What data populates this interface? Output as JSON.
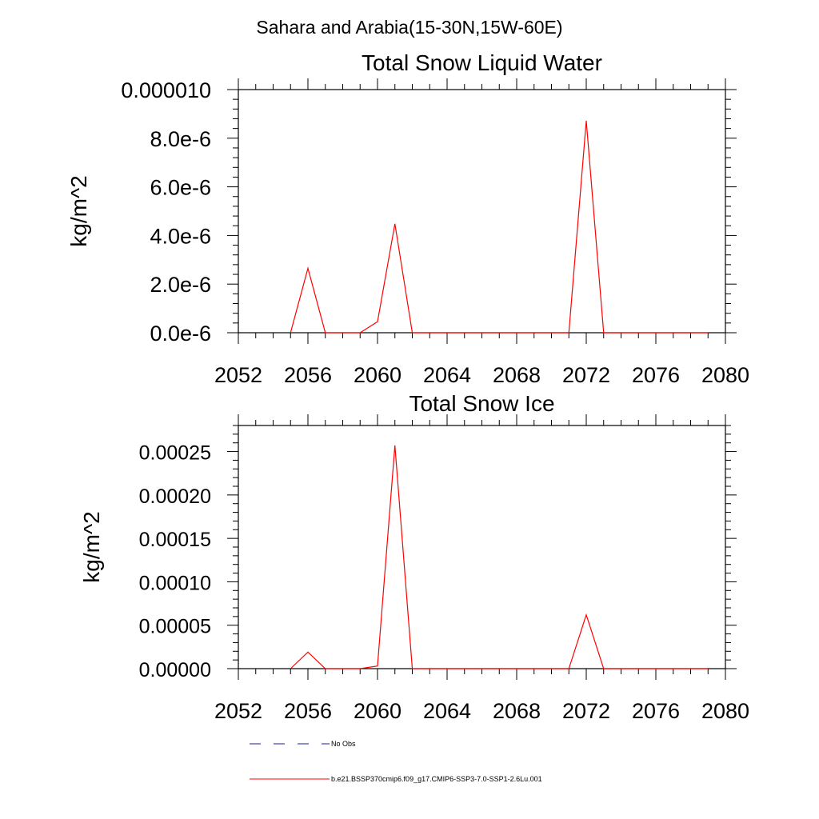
{
  "figure": {
    "suptitle": "Sahara and Arabia(15-30N,15W-60E)"
  },
  "chart_data": [
    {
      "type": "line",
      "title": "Total Snow Liquid Water",
      "ylabel": "kg/m^2",
      "xlabel": "",
      "xlim": [
        2052,
        2080
      ],
      "ylim": [
        0,
        1e-05
      ],
      "x_ticks": [
        2052,
        2056,
        2060,
        2064,
        2068,
        2072,
        2076,
        2080
      ],
      "y_ticks": [
        0,
        2e-06,
        4e-06,
        6e-06,
        8e-06,
        1e-05
      ],
      "y_tick_labels": [
        "0.0e-6",
        "2.0e-6",
        "4.0e-6",
        "6.0e-6",
        "8.0e-6",
        "0.000010"
      ],
      "series": [
        {
          "name": "b.e21.BSSP370cmip6.f09_g17.CMIP6-SSP3-7.0-SSP1-2.6Lu.001",
          "color": "#ff0000",
          "x": [
            2055,
            2056,
            2057,
            2058,
            2059,
            2060,
            2061,
            2062,
            2063,
            2064,
            2065,
            2066,
            2067,
            2068,
            2069,
            2070,
            2071,
            2072,
            2073,
            2074,
            2075,
            2076,
            2077,
            2078,
            2079
          ],
          "y": [
            0,
            2.65e-06,
            0,
            0,
            0,
            4.5e-07,
            4.48e-06,
            0,
            0,
            0,
            0,
            0,
            0,
            0,
            0,
            0,
            0,
            8.72e-06,
            0,
            0,
            0,
            0,
            0,
            0,
            0
          ]
        }
      ]
    },
    {
      "type": "line",
      "title": "Total Snow Ice",
      "ylabel": "kg/m^2",
      "xlabel": "",
      "xlim": [
        2052,
        2080
      ],
      "ylim": [
        0,
        0.00028
      ],
      "x_ticks": [
        2052,
        2056,
        2060,
        2064,
        2068,
        2072,
        2076,
        2080
      ],
      "y_ticks": [
        0,
        5e-05,
        0.0001,
        0.00015,
        0.0002,
        0.00025
      ],
      "y_tick_labels": [
        "0.00000",
        "0.00005",
        "0.00010",
        "0.00015",
        "0.00020",
        "0.00025"
      ],
      "series": [
        {
          "name": "b.e21.BSSP370cmip6.f09_g17.CMIP6-SSP3-7.0-SSP1-2.6Lu.001",
          "color": "#ff0000",
          "x": [
            2055,
            2056,
            2057,
            2058,
            2059,
            2060,
            2061,
            2062,
            2063,
            2064,
            2065,
            2066,
            2067,
            2068,
            2069,
            2070,
            2071,
            2072,
            2073,
            2074,
            2075,
            2076,
            2077,
            2078,
            2079
          ],
          "y": [
            0,
            1.9e-05,
            0,
            0,
            0,
            3e-06,
            0.000257,
            0,
            0,
            0,
            0,
            0,
            0,
            0,
            0,
            0,
            0,
            6.2e-05,
            0,
            0,
            0,
            0,
            0,
            0,
            0
          ]
        }
      ]
    }
  ],
  "legend": [
    {
      "label": "No Obs",
      "color": "#1f1f8f",
      "dashed": true
    },
    {
      "label": "b.e21.BSSP370cmip6.f09_g17.CMIP6-SSP3-7.0-SSP1-2.6Lu.001",
      "color": "#ff0000",
      "dashed": false
    }
  ]
}
